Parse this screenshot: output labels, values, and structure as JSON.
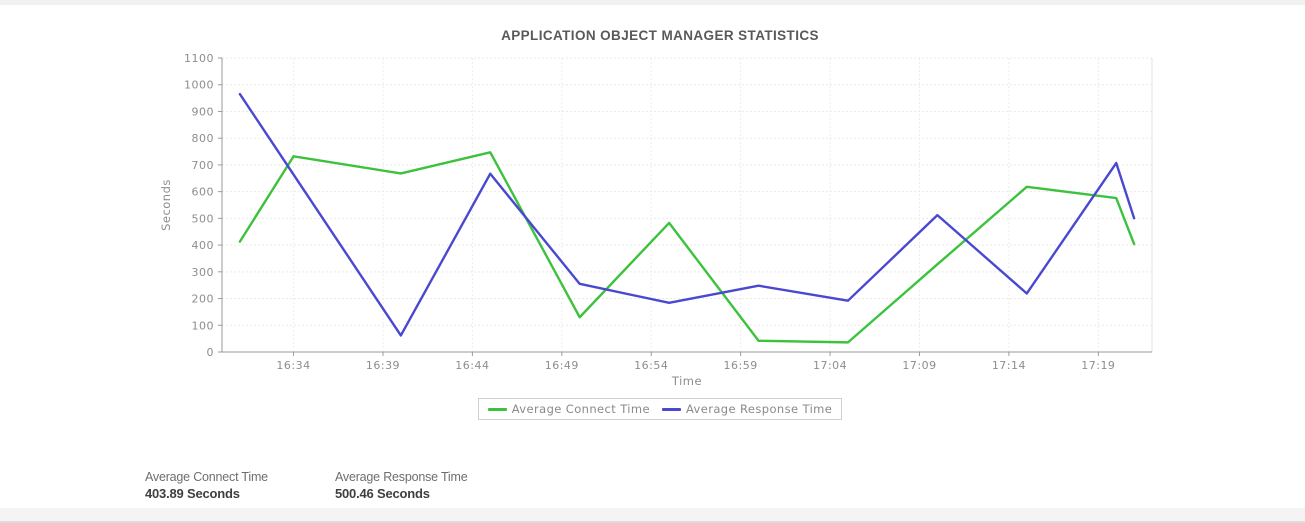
{
  "chart_data": {
    "type": "line",
    "title": "APPLICATION OBJECT MANAGER STATISTICS",
    "xlabel": "Time",
    "ylabel": "Seconds",
    "ylim": [
      0,
      1100
    ],
    "y_tick_step": 100,
    "grid": true,
    "legend_position": "bottom",
    "x_range": [
      "16:30",
      "17:22"
    ],
    "x_ticks": [
      "16:34",
      "16:39",
      "16:44",
      "16:49",
      "16:54",
      "16:59",
      "17:04",
      "17:09",
      "17:14",
      "17:19"
    ],
    "x": [
      "16:31",
      "16:34",
      "16:40",
      "16:45",
      "16:50",
      "16:55",
      "17:00",
      "17:05",
      "17:10",
      "17:15",
      "17:20",
      "17:21"
    ],
    "series": [
      {
        "name": "Average Connect Time",
        "color": "#3cc23c",
        "values": [
          413,
          732,
          668,
          747,
          130,
          483,
          42,
          36,
          328,
          618,
          576,
          403.89
        ]
      },
      {
        "name": "Average Response Time",
        "color": "#4a48d0",
        "values": [
          965,
          664,
          62,
          667,
          255,
          184,
          248,
          192,
          512,
          219,
          707,
          500.46
        ]
      }
    ]
  },
  "stats": [
    {
      "label": "Average Connect Time",
      "value": "403.89 Seconds"
    },
    {
      "label": "Average Response Time",
      "value": "500.46 Seconds"
    }
  ]
}
